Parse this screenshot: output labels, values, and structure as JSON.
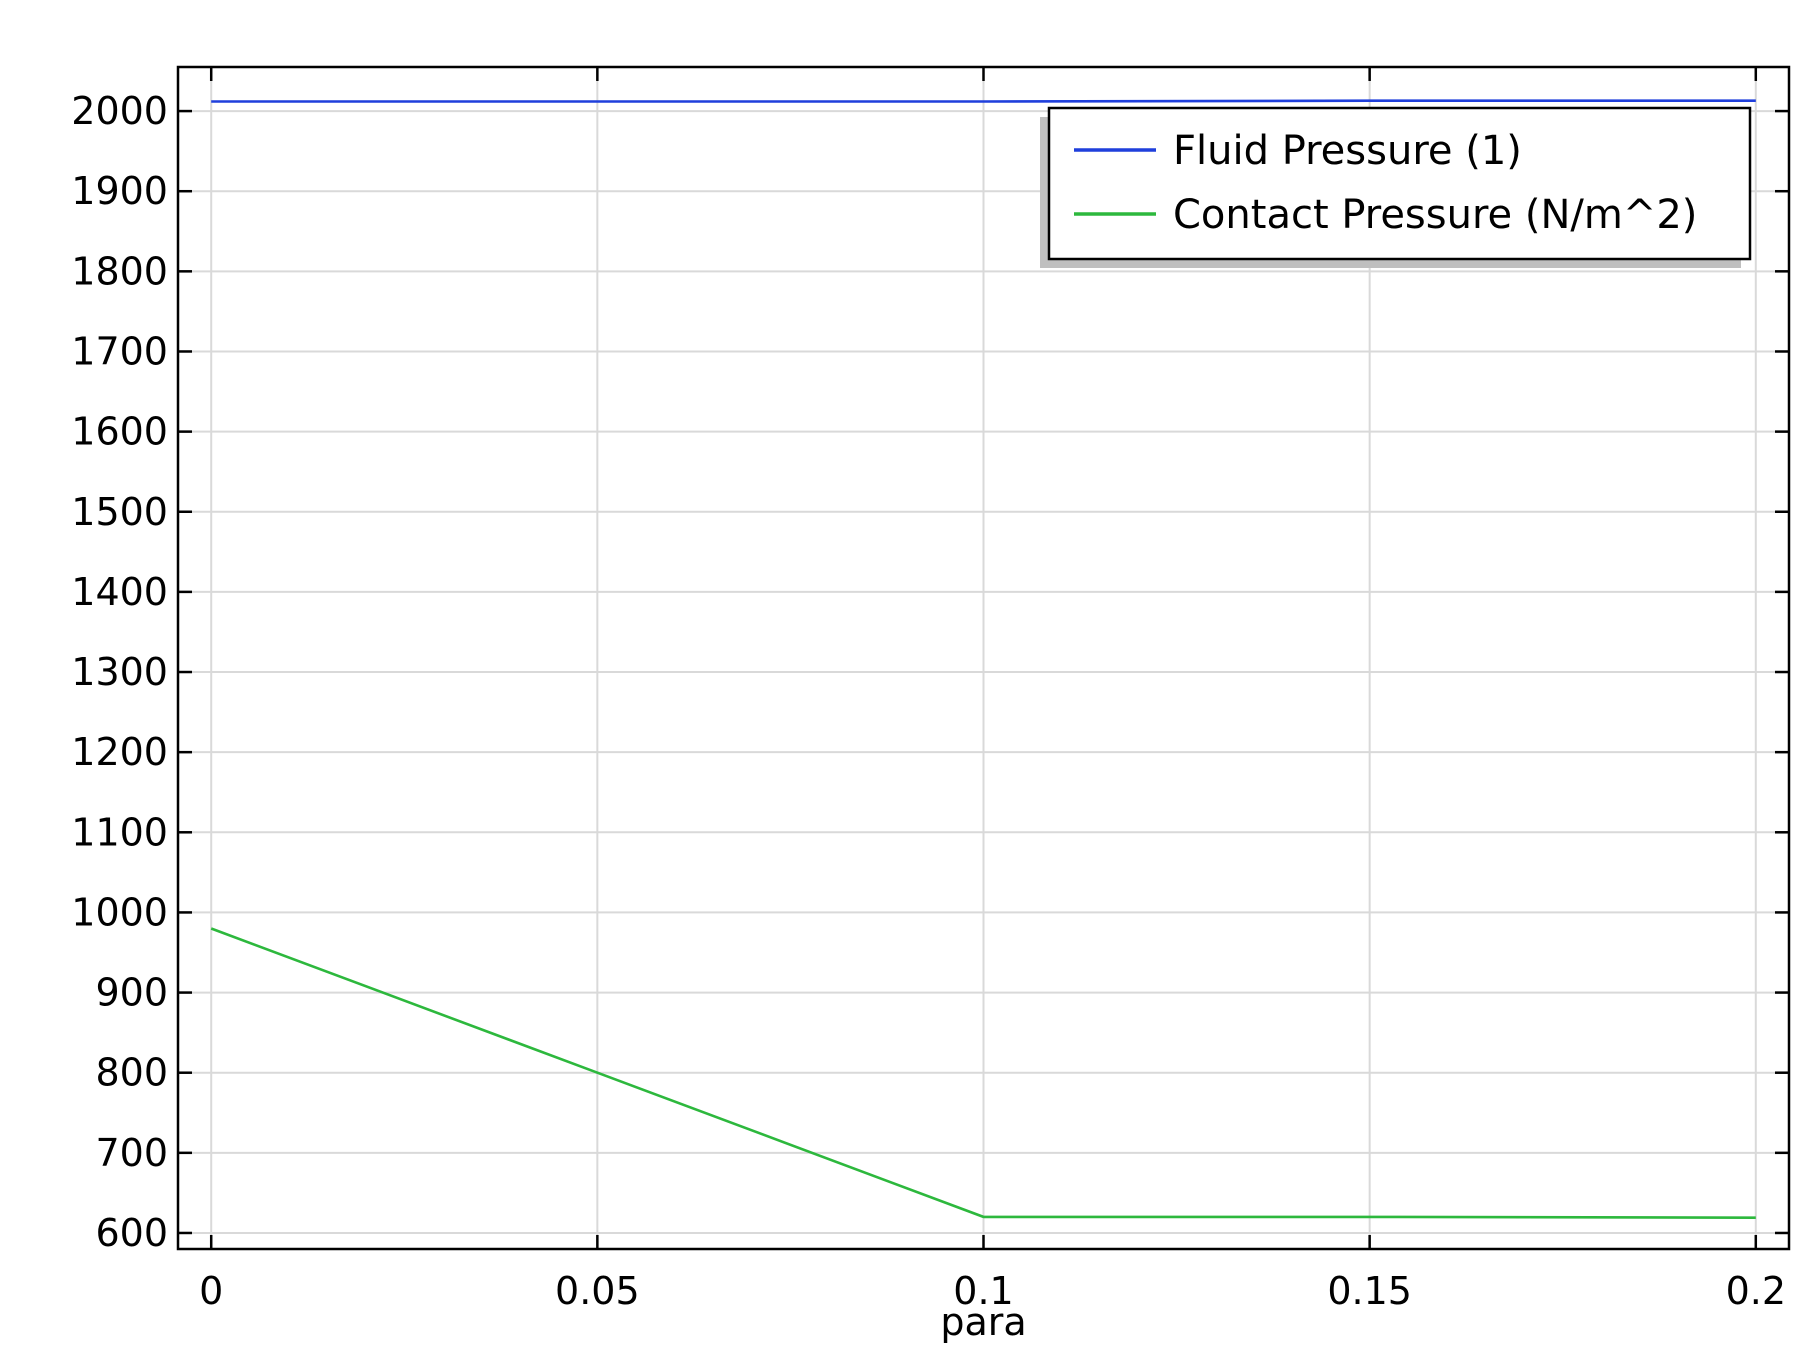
{
  "chart_data": {
    "type": "line",
    "title": "",
    "xlabel": "para",
    "ylabel": "",
    "xlim": [
      -0.0043,
      0.2043
    ],
    "ylim": [
      580,
      2055
    ],
    "xticks": [
      0,
      0.05,
      0.1,
      0.15,
      0.2
    ],
    "xtick_labels": [
      "0",
      "0.05",
      "0.1",
      "0.15",
      "0.2"
    ],
    "yticks": [
      600,
      700,
      800,
      900,
      1000,
      1100,
      1200,
      1300,
      1400,
      1500,
      1600,
      1700,
      1800,
      1900,
      2000
    ],
    "ytick_labels": [
      "600",
      "700",
      "800",
      "900",
      "1000",
      "1100",
      "1200",
      "1300",
      "1400",
      "1500",
      "1600",
      "1700",
      "1800",
      "1900",
      "2000"
    ],
    "grid": true,
    "legend_position": "top-right",
    "series": [
      {
        "name": "Fluid Pressure (1)",
        "color": "#1f3fdc",
        "x": [
          0,
          0.05,
          0.1,
          0.15,
          0.2
        ],
        "y": [
          2012,
          2012,
          2012,
          2013,
          2013
        ]
      },
      {
        "name": "Contact Pressure (N/m^2)",
        "color": "#2db83d",
        "x": [
          0,
          0.05,
          0.1,
          0.15,
          0.2
        ],
        "y": [
          980,
          800,
          620,
          620,
          619
        ]
      }
    ]
  }
}
